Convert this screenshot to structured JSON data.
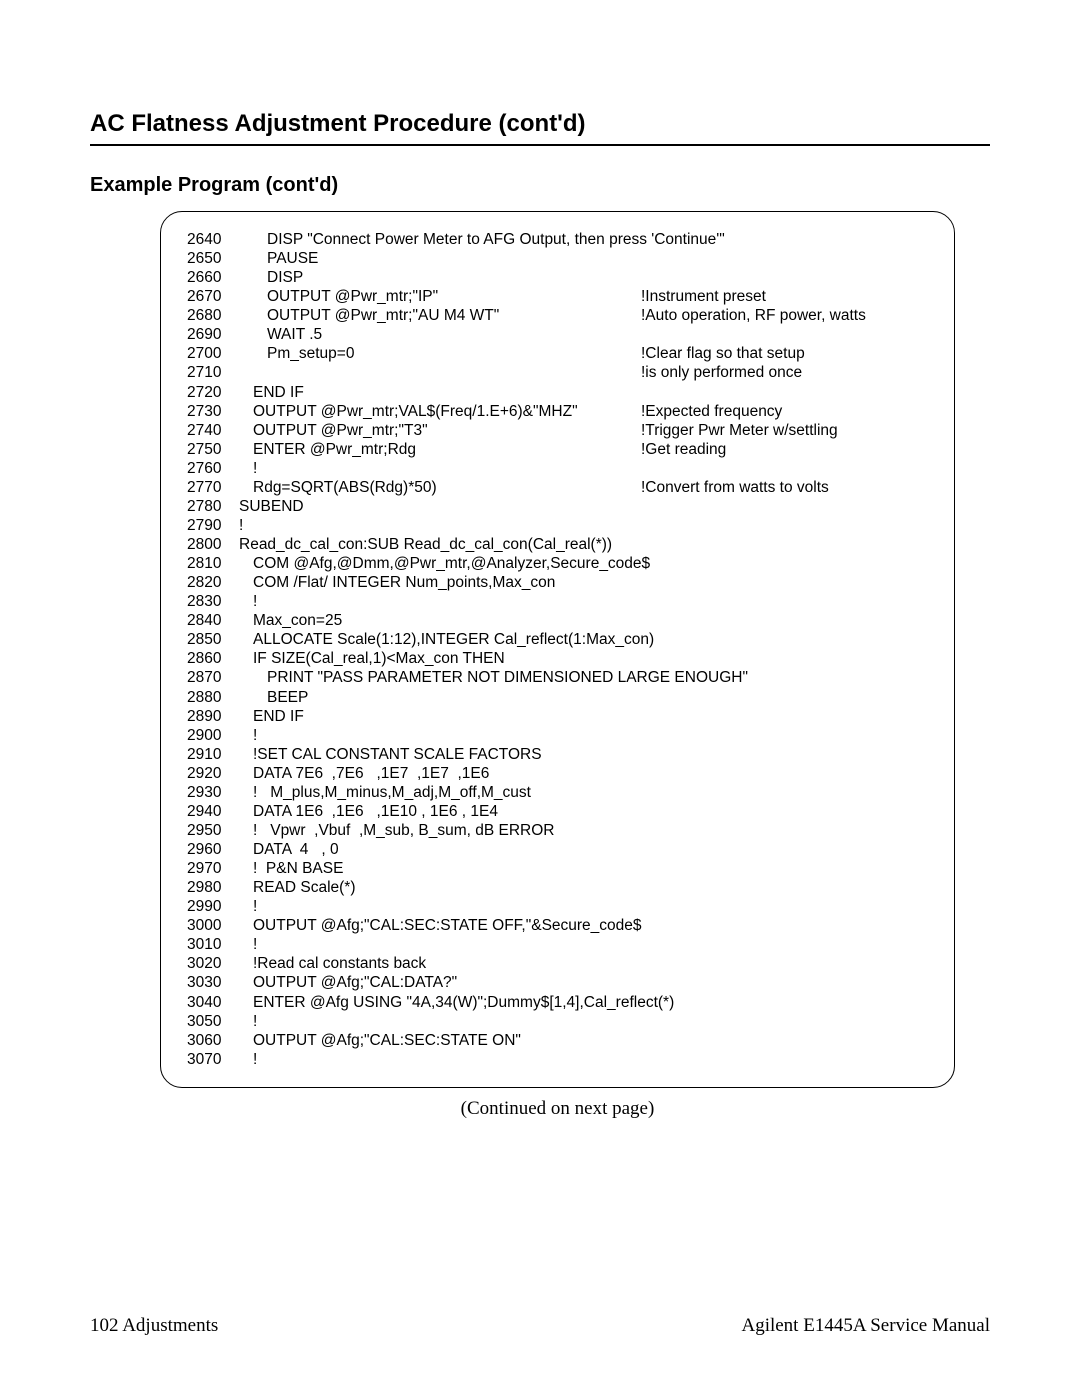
{
  "title": "AC Flatness Adjustment Procedure (cont'd)",
  "subtitle": "Example Program (cont'd)",
  "continued": "(Continued on next page)",
  "footer_left": "102  Adjustments",
  "footer_right": "Agilent E1445A Service Manual",
  "code": [
    {
      "ln": "2640",
      "i": 2,
      "t": "DISP \"Connect Power Meter to AFG Output, then press 'Continue'\"",
      "c": ""
    },
    {
      "ln": "2650",
      "i": 2,
      "t": "PAUSE",
      "c": ""
    },
    {
      "ln": "2660",
      "i": 2,
      "t": "DISP",
      "c": ""
    },
    {
      "ln": "2670",
      "i": 2,
      "t": "OUTPUT @Pwr_mtr;\"IP\"",
      "c": "!Instrument preset"
    },
    {
      "ln": "2680",
      "i": 2,
      "t": "OUTPUT @Pwr_mtr;\"AU M4 WT\"",
      "c": "!Auto operation, RF power, watts"
    },
    {
      "ln": "2690",
      "i": 2,
      "t": "WAIT .5",
      "c": ""
    },
    {
      "ln": "2700",
      "i": 2,
      "t": "Pm_setup=0",
      "c": "!Clear flag so that setup"
    },
    {
      "ln": "2710",
      "i": 2,
      "t": "",
      "c": "!is only performed once"
    },
    {
      "ln": "2720",
      "i": 1,
      "t": "END IF",
      "c": ""
    },
    {
      "ln": "2730",
      "i": 1,
      "t": "OUTPUT @Pwr_mtr;VAL$(Freq/1.E+6)&\"MHZ\"",
      "c": "!Expected frequency"
    },
    {
      "ln": "2740",
      "i": 1,
      "t": "OUTPUT @Pwr_mtr;\"T3\"",
      "c": "!Trigger Pwr Meter w/settling"
    },
    {
      "ln": "2750",
      "i": 1,
      "t": "ENTER @Pwr_mtr;Rdg",
      "c": "!Get reading"
    },
    {
      "ln": "2760",
      "i": 1,
      "t": "!",
      "c": ""
    },
    {
      "ln": "2770",
      "i": 1,
      "t": "Rdg=SQRT(ABS(Rdg)*50)",
      "c": "!Convert from watts to volts"
    },
    {
      "ln": "2780",
      "i": 0,
      "t": "SUBEND",
      "c": ""
    },
    {
      "ln": "2790",
      "i": 0,
      "t": "!",
      "c": ""
    },
    {
      "ln": "2800",
      "i": 0,
      "t": "Read_dc_cal_con:SUB Read_dc_cal_con(Cal_real(*))",
      "c": ""
    },
    {
      "ln": "2810",
      "i": 1,
      "t": "COM @Afg,@Dmm,@Pwr_mtr,@Analyzer,Secure_code$",
      "c": ""
    },
    {
      "ln": "2820",
      "i": 1,
      "t": "COM /Flat/ INTEGER Num_points,Max_con",
      "c": ""
    },
    {
      "ln": "2830",
      "i": 1,
      "t": "!",
      "c": ""
    },
    {
      "ln": "2840",
      "i": 1,
      "t": "Max_con=25",
      "c": ""
    },
    {
      "ln": "2850",
      "i": 1,
      "t": "ALLOCATE Scale(1:12),INTEGER Cal_reflect(1:Max_con)",
      "c": ""
    },
    {
      "ln": "2860",
      "i": 1,
      "t": "IF SIZE(Cal_real,1)<Max_con THEN",
      "c": ""
    },
    {
      "ln": "2870",
      "i": 2,
      "t": "PRINT \"PASS PARAMETER NOT DIMENSIONED LARGE ENOUGH\"",
      "c": ""
    },
    {
      "ln": "2880",
      "i": 2,
      "t": "BEEP",
      "c": ""
    },
    {
      "ln": "2890",
      "i": 1,
      "t": "END IF",
      "c": ""
    },
    {
      "ln": "2900",
      "i": 1,
      "t": "!",
      "c": ""
    },
    {
      "ln": "2910",
      "i": 1,
      "t": "!SET CAL CONSTANT SCALE FACTORS",
      "c": ""
    },
    {
      "ln": "2920",
      "i": 1,
      "t": "DATA 7E6  ,7E6   ,1E7  ,1E7  ,1E6",
      "c": ""
    },
    {
      "ln": "2930",
      "i": 1,
      "t": "!   M_plus,M_minus,M_adj,M_off,M_cust",
      "c": ""
    },
    {
      "ln": "2940",
      "i": 1,
      "t": "DATA 1E6  ,1E6   ,1E10 , 1E6 , 1E4",
      "c": ""
    },
    {
      "ln": "2950",
      "i": 1,
      "t": "!   Vpwr  ,Vbuf  ,M_sub, B_sum, dB ERROR",
      "c": ""
    },
    {
      "ln": "2960",
      "i": 1,
      "t": "DATA  4   , 0",
      "c": ""
    },
    {
      "ln": "2970",
      "i": 1,
      "t": "!  P&N BASE",
      "c": ""
    },
    {
      "ln": "2980",
      "i": 1,
      "t": "READ Scale(*)",
      "c": ""
    },
    {
      "ln": "2990",
      "i": 1,
      "t": "!",
      "c": ""
    },
    {
      "ln": "3000",
      "i": 1,
      "t": "OUTPUT @Afg;\"CAL:SEC:STATE OFF,\"&Secure_code$",
      "c": ""
    },
    {
      "ln": "3010",
      "i": 1,
      "t": "!",
      "c": ""
    },
    {
      "ln": "3020",
      "i": 1,
      "t": "!Read cal constants back",
      "c": ""
    },
    {
      "ln": "3030",
      "i": 1,
      "t": "OUTPUT @Afg;\"CAL:DATA?\"",
      "c": ""
    },
    {
      "ln": "3040",
      "i": 1,
      "t": "ENTER @Afg USING \"4A,34(W)\";Dummy$[1,4],Cal_reflect(*)",
      "c": ""
    },
    {
      "ln": "3050",
      "i": 1,
      "t": "!",
      "c": ""
    },
    {
      "ln": "3060",
      "i": 1,
      "t": "OUTPUT @Afg;\"CAL:SEC:STATE ON\"",
      "c": ""
    },
    {
      "ln": "3070",
      "i": 1,
      "t": "!",
      "c": ""
    }
  ]
}
